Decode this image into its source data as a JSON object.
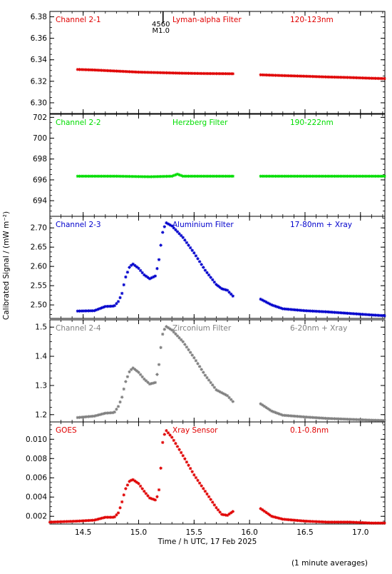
{
  "chart_data": {
    "type": "scatter",
    "xlabel": "Time / h UTC, 17 Feb 2025",
    "ylabel": "Calibrated Signal / (mW m⁻²)",
    "footnote": "(1 minute averages)",
    "xlim": [
      14.2,
      17.22
    ],
    "xticks": [
      14.5,
      15.0,
      15.5,
      16.0,
      16.5,
      17.0
    ],
    "xtick_labels": [
      "14.5",
      "15.0",
      "15.5",
      "16.0",
      "16.5",
      "17.0"
    ],
    "marker": {
      "x": 15.22,
      "label_line1": "4560",
      "label_line2": "M1.0"
    },
    "gap": [
      15.86,
      16.1
    ],
    "panels": [
      {
        "channel": "Channel 2-1",
        "filter": "Lyman-alpha Filter",
        "band": "120-123nm",
        "color": "#e00000",
        "ylim": [
          6.29,
          6.385
        ],
        "yticks": [
          6.3,
          6.32,
          6.34,
          6.36,
          6.38
        ],
        "ytick_labels": [
          "6.30",
          "6.32",
          "6.34",
          "6.36",
          "6.38"
        ],
        "x": [
          14.45,
          14.6,
          14.8,
          15.0,
          15.2,
          15.4,
          15.6,
          15.85,
          16.1,
          16.3,
          16.5,
          16.7,
          16.9,
          17.1,
          17.22
        ],
        "values": [
          6.331,
          6.3305,
          6.3295,
          6.3285,
          6.328,
          6.3275,
          6.3272,
          6.327,
          6.326,
          6.3253,
          6.3247,
          6.324,
          6.3235,
          6.3228,
          6.3225
        ]
      },
      {
        "channel": "Channel 2-2",
        "filter": "Herzberg Filter",
        "band": "190-222nm",
        "color": "#00dd00",
        "ylim": [
          692.5,
          702.3
        ],
        "yticks": [
          694,
          696,
          698,
          700,
          702
        ],
        "ytick_labels": [
          "694",
          "696",
          "698",
          "700",
          "702"
        ],
        "x": [
          14.45,
          14.8,
          15.1,
          15.3,
          15.35,
          15.4,
          15.6,
          15.85,
          16.1,
          16.5,
          16.9,
          17.22
        ],
        "values": [
          696.35,
          696.35,
          696.3,
          696.35,
          696.55,
          696.35,
          696.35,
          696.35,
          696.35,
          696.35,
          696.35,
          696.35
        ]
      },
      {
        "channel": "Channel 2-3",
        "filter": "Aluminium Filter",
        "band": "17-80nm + Xray",
        "color": "#0000cc",
        "ylim": [
          2.465,
          2.73
        ],
        "yticks": [
          2.5,
          2.55,
          2.6,
          2.65,
          2.7
        ],
        "ytick_labels": [
          "2.50",
          "2.55",
          "2.60",
          "2.65",
          "2.70"
        ],
        "x": [
          14.45,
          14.6,
          14.7,
          14.78,
          14.82,
          14.85,
          14.88,
          14.92,
          14.95,
          15.0,
          15.05,
          15.1,
          15.15,
          15.18,
          15.2,
          15.22,
          15.25,
          15.3,
          15.4,
          15.5,
          15.6,
          15.7,
          15.75,
          15.8,
          15.85,
          16.1,
          16.2,
          16.3,
          16.5,
          16.7,
          16.9,
          17.1,
          17.22
        ],
        "values": [
          2.484,
          2.485,
          2.496,
          2.497,
          2.51,
          2.53,
          2.57,
          2.6,
          2.606,
          2.595,
          2.578,
          2.568,
          2.575,
          2.61,
          2.655,
          2.695,
          2.713,
          2.705,
          2.675,
          2.635,
          2.59,
          2.553,
          2.542,
          2.538,
          2.523,
          2.515,
          2.5,
          2.49,
          2.485,
          2.482,
          2.478,
          2.474,
          2.472
        ]
      },
      {
        "channel": "Channel 2-4",
        "filter": "Zirconium Filter",
        "band": "6-20nm + Xray",
        "color": "#808080",
        "ylim": [
          1.175,
          1.525
        ],
        "yticks": [
          1.2,
          1.3,
          1.4,
          1.5
        ],
        "ytick_labels": [
          "1.2",
          "1.3",
          "1.4",
          "1.5"
        ],
        "x": [
          14.45,
          14.6,
          14.7,
          14.78,
          14.82,
          14.85,
          14.88,
          14.92,
          14.95,
          15.0,
          15.05,
          15.1,
          15.15,
          15.18,
          15.2,
          15.22,
          15.25,
          15.3,
          15.4,
          15.5,
          15.6,
          15.7,
          15.75,
          15.8,
          15.85,
          16.1,
          16.2,
          16.3,
          16.5,
          16.7,
          16.9,
          17.1,
          17.22
        ],
        "values": [
          1.19,
          1.195,
          1.205,
          1.207,
          1.23,
          1.26,
          1.31,
          1.35,
          1.36,
          1.345,
          1.322,
          1.305,
          1.31,
          1.36,
          1.43,
          1.485,
          1.502,
          1.49,
          1.45,
          1.395,
          1.335,
          1.285,
          1.275,
          1.265,
          1.245,
          1.237,
          1.212,
          1.198,
          1.192,
          1.187,
          1.184,
          1.181,
          1.18
        ]
      },
      {
        "channel": "GOES",
        "filter": "Xray Sensor",
        "band": "0.1-0.8nm",
        "color": "#e00000",
        "ylim": [
          0.0012,
          0.0118
        ],
        "yticks": [
          0.002,
          0.004,
          0.006,
          0.008,
          0.01
        ],
        "ytick_labels": [
          "0.002",
          "0.004",
          "0.006",
          "0.008",
          "0.010"
        ],
        "x": [
          14.2,
          14.45,
          14.6,
          14.7,
          14.78,
          14.82,
          14.85,
          14.88,
          14.92,
          14.95,
          15.0,
          15.05,
          15.1,
          15.15,
          15.18,
          15.2,
          15.22,
          15.25,
          15.3,
          15.4,
          15.5,
          15.6,
          15.7,
          15.75,
          15.8,
          15.85,
          15.9,
          15.95,
          16.0,
          16.05,
          16.1,
          16.2,
          16.3,
          16.5,
          16.7,
          16.9,
          17.1,
          17.22
        ],
        "values": [
          0.0014,
          0.0015,
          0.0016,
          0.0019,
          0.0019,
          0.0024,
          0.0035,
          0.0048,
          0.0057,
          0.0058,
          0.0054,
          0.0046,
          0.0039,
          0.0037,
          0.0043,
          0.007,
          0.0102,
          0.0109,
          0.0102,
          0.0083,
          0.0063,
          0.0046,
          0.0029,
          0.0022,
          0.0021,
          0.0025,
          0.0037,
          0.0046,
          0.0045,
          0.0038,
          0.0028,
          0.002,
          0.0017,
          0.0015,
          0.0014,
          0.0014,
          0.0013,
          0.0013
        ]
      }
    ]
  }
}
